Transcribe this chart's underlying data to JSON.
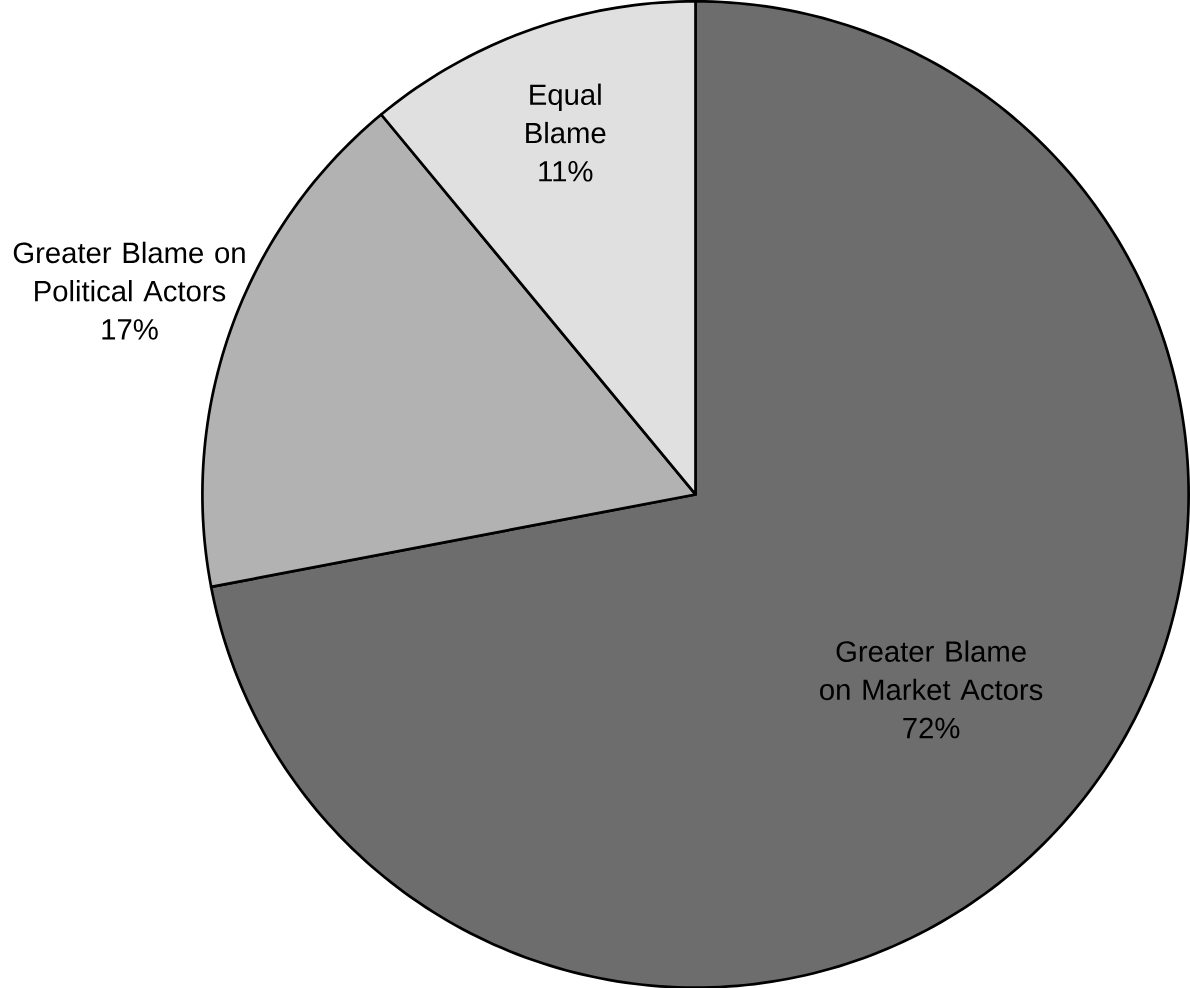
{
  "chart_data": {
    "type": "pie",
    "categories": [
      "Greater Blame on Market Actors",
      "Greater Blame on Political Actors",
      "Equal Blame"
    ],
    "values": [
      72,
      17,
      11
    ],
    "colors": [
      "#6d6d6d",
      "#b2b2b2",
      "#e0e0e0"
    ],
    "value_labels": [
      "72%",
      "17%",
      "11%"
    ]
  }
}
